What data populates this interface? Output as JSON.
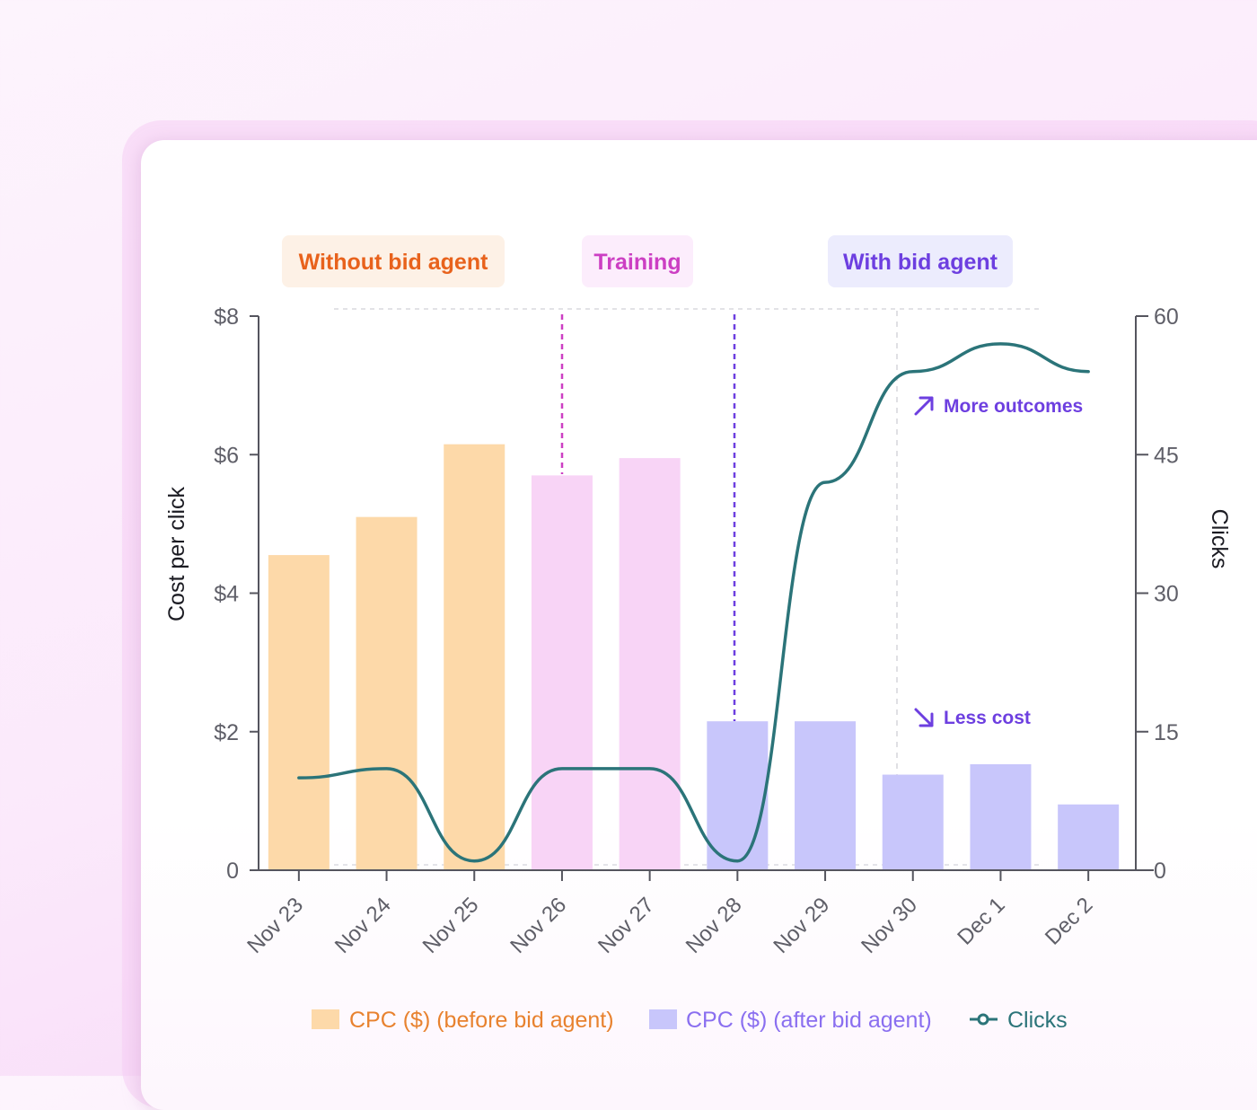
{
  "chart_data": {
    "type": "bar",
    "categories": [
      "Nov 23",
      "Nov 24",
      "Nov 25",
      "Nov 26",
      "Nov 27",
      "Nov 28",
      "Nov 29",
      "Nov 30",
      "Dec 1",
      "Dec 2"
    ],
    "series": [
      {
        "name": "CPC ($) (before bid agent)",
        "type": "bar",
        "axis": "left",
        "values": [
          4.55,
          5.1,
          6.15,
          5.7,
          5.95,
          2.15,
          2.15,
          1.38,
          1.53,
          0.95
        ]
      },
      {
        "name": "Clicks",
        "type": "line",
        "axis": "right",
        "values": [
          10,
          11,
          1,
          11,
          11,
          1,
          42,
          54,
          57,
          54
        ]
      }
    ],
    "bar_phase": [
      "before",
      "before",
      "before",
      "training",
      "training",
      "after",
      "after",
      "after",
      "after",
      "after"
    ],
    "phase_colors": {
      "before": "#fdd9a9",
      "training": "#f8d4f6",
      "after": "#c8c6fb"
    },
    "line_color": "#2b7479",
    "left_axis": {
      "title": "Cost per click",
      "ticks": [
        "0",
        "$2",
        "$4",
        "$6",
        "$8"
      ],
      "ylim": [
        0,
        8
      ]
    },
    "right_axis": {
      "title": "Clicks",
      "ticks": [
        "0",
        "15",
        "30",
        "45",
        "60"
      ],
      "ylim": [
        0,
        60
      ]
    },
    "phases": [
      {
        "label": "Without bid agent",
        "color": "#e8621c",
        "bg": "#fdf1e6"
      },
      {
        "label": "Training",
        "color": "#cc3fc3",
        "bg": "#fcedfc"
      },
      {
        "label": "With bid agent",
        "color": "#6d3fe0",
        "bg": "#ececfd"
      }
    ],
    "annotations": [
      {
        "label": "More outcomes",
        "icon": "arrow-up-right-icon"
      },
      {
        "label": "Less cost",
        "icon": "arrow-down-right-icon"
      }
    ],
    "legend": [
      {
        "label": "CPC ($) (before bid agent)",
        "color": "#e8822f",
        "swatch": "#fdd9a9",
        "kind": "box"
      },
      {
        "label": "CPC ($) (after bid agent)",
        "color": "#8a6ff0",
        "swatch": "#c8c6fb",
        "kind": "box"
      },
      {
        "label": "Clicks",
        "color": "#2b7479",
        "swatch": "#2b7479",
        "kind": "line"
      }
    ],
    "grid": false,
    "legend_position": "bottom"
  }
}
